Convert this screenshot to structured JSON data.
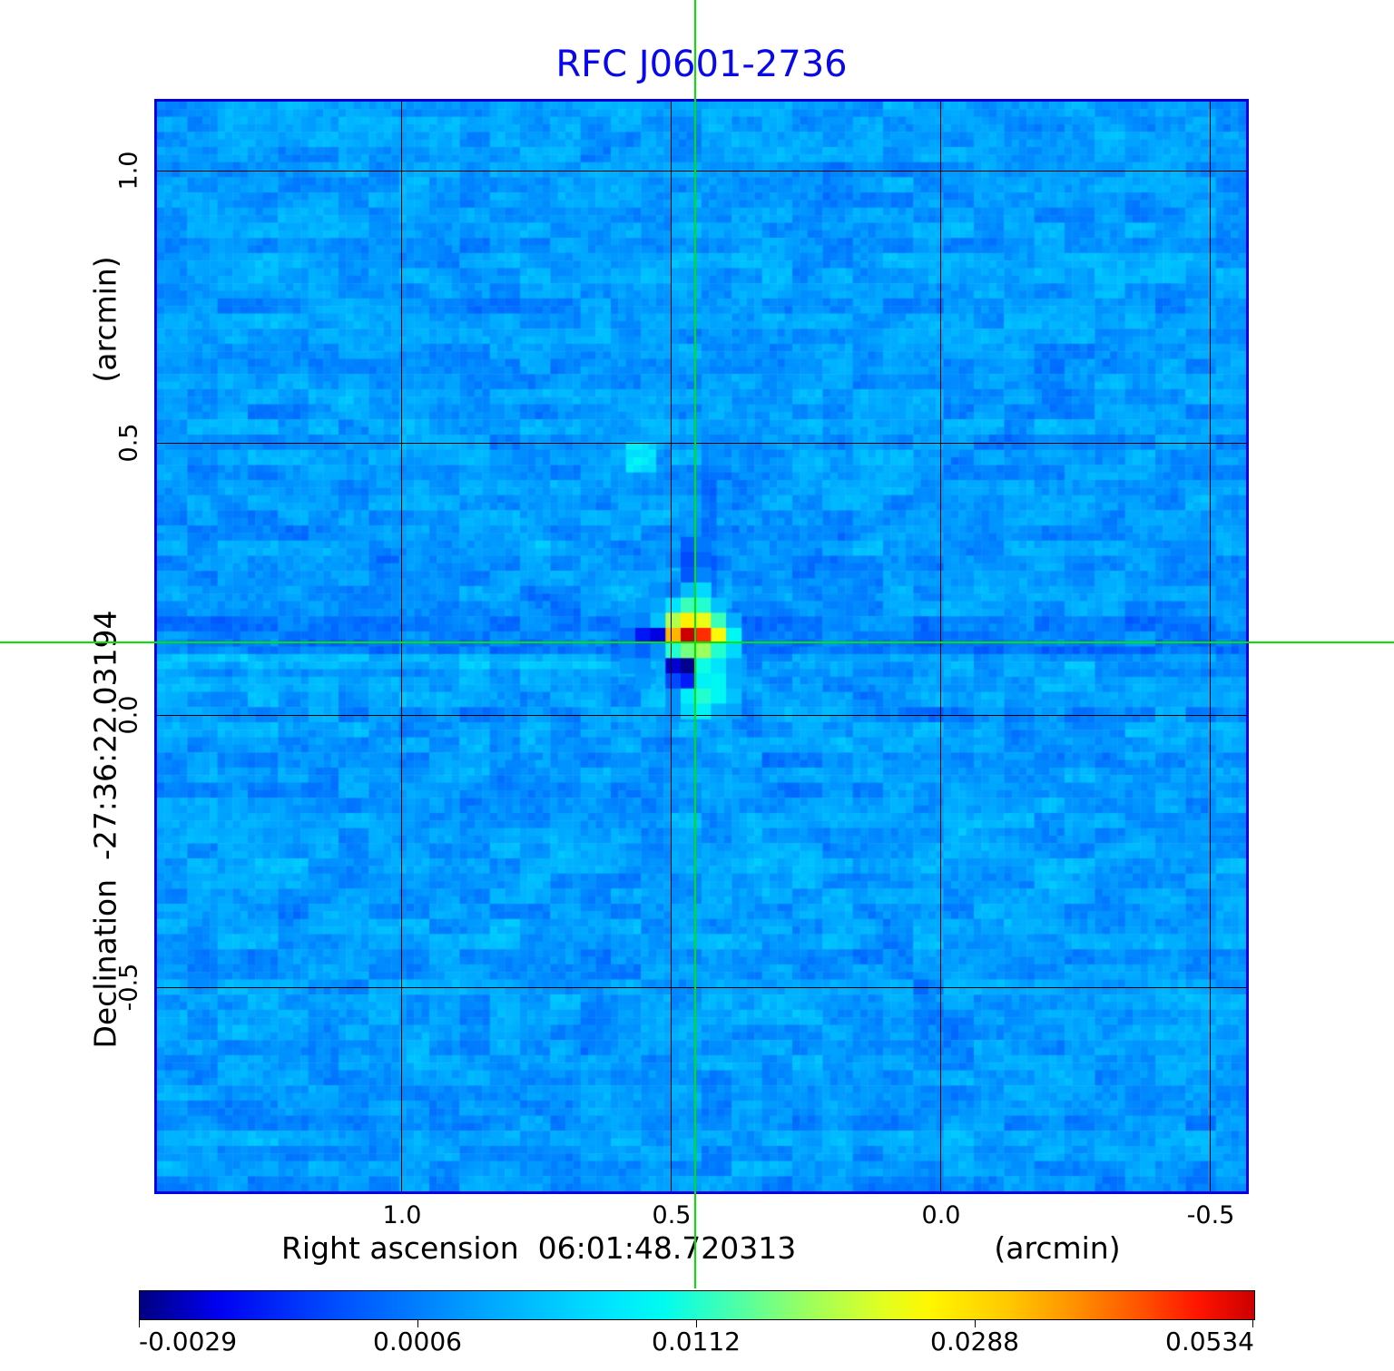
{
  "title": {
    "text": "RFC J0601-2736",
    "color": "#0808e8"
  },
  "axes": {
    "x": {
      "label": "Right ascension  06:01:48.720313",
      "unit": "(arcmin)",
      "tick_labels": [
        "1.0",
        "0.5",
        "0.0",
        "-0.5"
      ]
    },
    "y": {
      "label": "Declination  -27:36:22.03194",
      "unit": "(arcmin)",
      "tick_labels": [
        "1.0",
        "0.5",
        "0.0",
        "-0.5"
      ]
    }
  },
  "crosshair": {
    "color": "#00e400",
    "x_arcmin": 0.45,
    "y_arcmin": 0.13
  },
  "colorbar": {
    "labels": [
      "-0.0029",
      "0.0006",
      "0.0112",
      "0.0288",
      "0.0534"
    ]
  },
  "chart_data": {
    "type": "heatmap",
    "title": "RFC J0601-2736",
    "xlabel": "Right ascension  06:01:48.720313 (arcmin)",
    "ylabel": "Declination  -27:36:22.03194 (arcmin)",
    "x_ticks_arcmin": [
      1.0,
      0.5,
      0.0,
      -0.5
    ],
    "y_ticks_arcmin": [
      1.0,
      0.5,
      0.0,
      -0.5
    ],
    "x_range_arcmin": [
      1.45,
      -0.57
    ],
    "y_range_arcmin": [
      -0.875,
      1.127
    ],
    "colorbar_values": [
      -0.0029,
      0.0006,
      0.0112,
      0.0288,
      0.0534
    ],
    "peak_value": 0.0534,
    "crosshair_arcmin": {
      "x": 0.45,
      "y": 0.13
    },
    "colormap": [
      [
        0.0,
        "#000080"
      ],
      [
        0.07,
        "#0000f0"
      ],
      [
        0.18,
        "#0050ff"
      ],
      [
        0.3,
        "#00a0ff"
      ],
      [
        0.42,
        "#00e4ff"
      ],
      [
        0.47,
        "#00fcf0"
      ],
      [
        0.53,
        "#46ffae"
      ],
      [
        0.6,
        "#9cff5e"
      ],
      [
        0.67,
        "#e4ff1e"
      ],
      [
        0.71,
        "#fff600"
      ],
      [
        0.78,
        "#ffc800"
      ],
      [
        0.84,
        "#ff9000"
      ],
      [
        0.9,
        "#ff5000"
      ],
      [
        0.95,
        "#ff1400"
      ],
      [
        1.0,
        "#cc0000"
      ]
    ],
    "noise": {
      "base": 0.295,
      "amp_coarse": 0.085,
      "amp_fine": 0.05,
      "amp_row": 0.028
    },
    "spokes": [
      [
        16,
        -0.025
      ],
      [
        34,
        0.018
      ],
      [
        57,
        -0.02
      ],
      [
        74,
        0.015
      ],
      [
        106,
        -0.02
      ],
      [
        124,
        0.016
      ],
      [
        146,
        -0.024
      ],
      [
        163,
        -0.018
      ]
    ],
    "source_map": {
      "row_start": -6,
      "col_start": -4,
      "rows": [
        [
          null,
          null,
          null,
          null,
          0.2,
          0.24,
          null,
          null
        ],
        [
          null,
          null,
          null,
          0.26,
          0.17,
          0.21,
          null,
          null
        ],
        [
          null,
          null,
          null,
          null,
          0.19,
          0.26,
          null,
          null
        ],
        [
          null,
          null,
          0.28,
          0.25,
          0.35,
          0.4,
          null,
          null
        ],
        [
          null,
          0.29,
          0.31,
          0.42,
          0.52,
          0.5,
          0.36,
          null
        ],
        [
          0.28,
          0.26,
          0.36,
          0.62,
          0.72,
          0.68,
          0.52,
          0.33
        ],
        [
          0.22,
          0.1,
          0.06,
          0.8,
          1.0,
          0.93,
          0.7,
          0.46
        ],
        [
          0.25,
          0.21,
          0.28,
          0.5,
          0.57,
          0.6,
          0.5,
          0.4
        ],
        [
          0.29,
          0.28,
          null,
          0.05,
          0.01,
          0.48,
          0.42,
          0.32
        ],
        [
          null,
          0.29,
          null,
          0.17,
          0.11,
          0.45,
          0.46,
          0.33
        ],
        [
          null,
          null,
          null,
          0.28,
          0.44,
          0.5,
          0.46,
          0.36
        ],
        [
          null,
          null,
          null,
          0.28,
          0.4,
          0.45,
          0.34,
          0.31
        ]
      ]
    }
  }
}
